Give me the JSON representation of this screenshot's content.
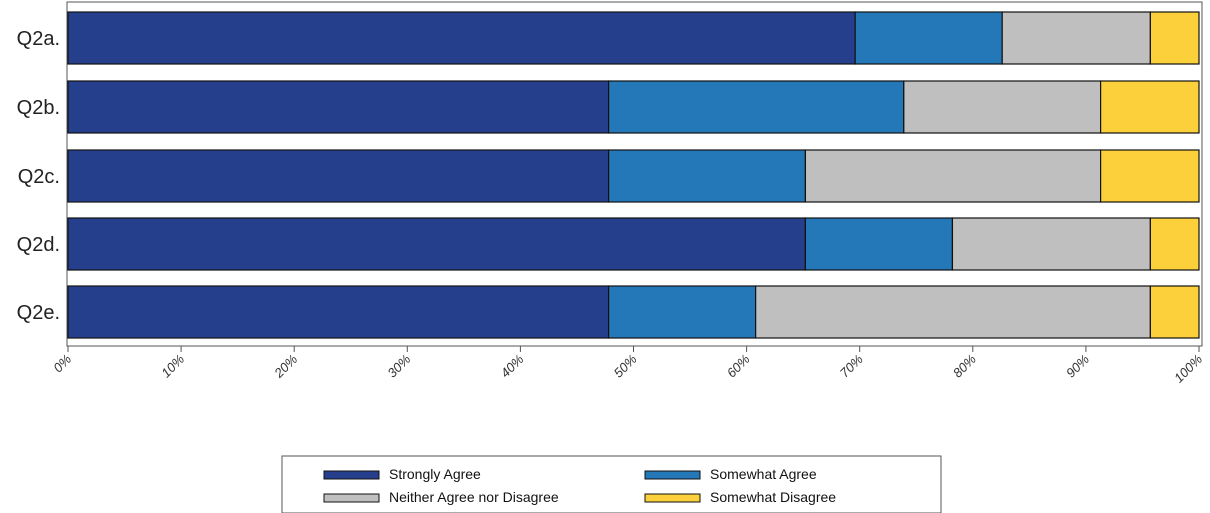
{
  "chart_data": {
    "type": "bar",
    "orientation": "horizontal",
    "stacked": true,
    "categories": [
      "Q2a.",
      "Q2b.",
      "Q2c.",
      "Q2d.",
      "Q2e."
    ],
    "series": [
      {
        "name": "Strongly Agree",
        "color": "#263f8c",
        "values": [
          69.6,
          47.8,
          47.8,
          65.2,
          47.8
        ]
      },
      {
        "name": "Somewhat Agree",
        "color": "#2478b8",
        "values": [
          13.0,
          26.1,
          17.4,
          13.0,
          13.0
        ]
      },
      {
        "name": "Neither Agree nor Disagree",
        "color": "#bfbfbf",
        "values": [
          13.1,
          17.4,
          26.1,
          17.5,
          34.9
        ]
      },
      {
        "name": "Somewhat Disagree",
        "color": "#fcd03a",
        "values": [
          4.3,
          8.7,
          8.7,
          4.3,
          4.3
        ]
      }
    ],
    "x_ticks": [
      "0%",
      "10%",
      "20%",
      "30%",
      "40%",
      "50%",
      "60%",
      "70%",
      "80%",
      "90%",
      "100%"
    ],
    "xlim": [
      0,
      100
    ],
    "title": "",
    "xlabel": "",
    "ylabel": "",
    "grid": false,
    "legend_position": "bottom"
  }
}
